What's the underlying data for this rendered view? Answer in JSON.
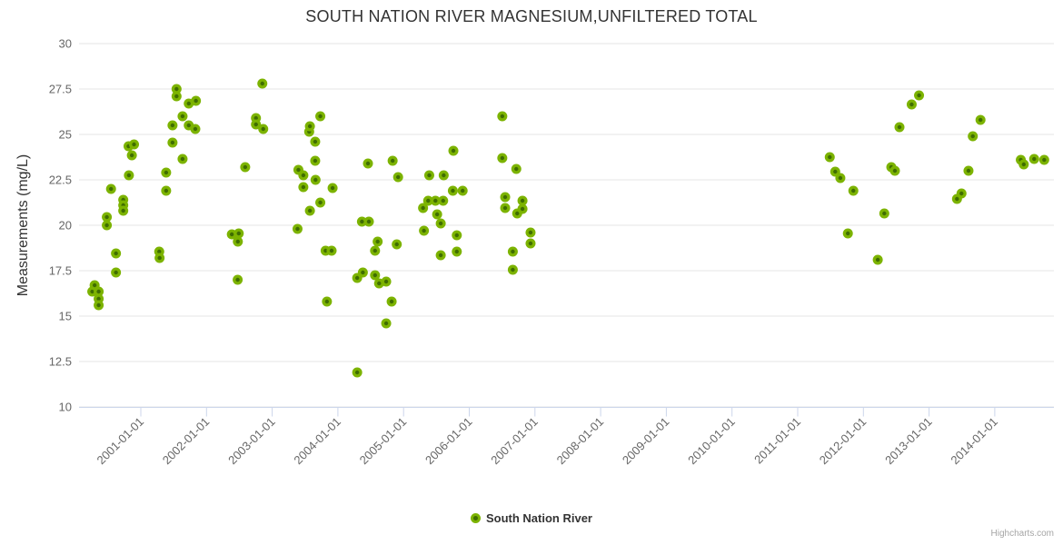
{
  "title": "SOUTH NATION RIVER MAGNESIUM,UNFILTERED TOTAL",
  "watermark": "Highcharts.com",
  "legend": {
    "series_label": "South Nation River"
  },
  "colors": {
    "marker_fill": "#7cb301",
    "marker_center": "#3f6d01",
    "grid_line": "#e6e6e6",
    "axis_line": "#ccd6eb",
    "axis_label": "#666666",
    "text": "#333333"
  },
  "chart_data": {
    "type": "scatter",
    "title": "SOUTH NATION RIVER MAGNESIUM,UNFILTERED TOTAL",
    "xlabel": "",
    "ylabel": "Measurements (mg/L)",
    "ylim": [
      10,
      30
    ],
    "yticks": [
      10,
      12.5,
      15,
      17.5,
      20,
      22.5,
      25,
      27.5,
      30
    ],
    "xticks": [
      "2001-01-01",
      "2002-01-01",
      "2003-01-01",
      "2004-01-01",
      "2005-01-01",
      "2006-01-01",
      "2007-01-01",
      "2008-01-01",
      "2009-01-01",
      "2010-01-01",
      "2011-01-01",
      "2012-01-01",
      "2013-01-01",
      "2014-01-01"
    ],
    "grid": true,
    "legend_position": "bottom",
    "series": [
      {
        "name": "South Nation River",
        "points": [
          [
            "2000-04-05",
            16.35
          ],
          [
            "2000-04-18",
            16.7
          ],
          [
            "2000-05-10",
            16.35
          ],
          [
            "2000-05-10",
            15.95
          ],
          [
            "2000-05-10",
            15.6
          ],
          [
            "2000-06-25",
            20.45
          ],
          [
            "2000-06-25",
            20.0
          ],
          [
            "2000-07-18",
            22.0
          ],
          [
            "2000-08-15",
            18.45
          ],
          [
            "2000-08-15",
            17.4
          ],
          [
            "2000-09-25",
            21.4
          ],
          [
            "2000-09-25",
            21.1
          ],
          [
            "2000-09-25",
            20.8
          ],
          [
            "2000-10-24",
            24.35
          ],
          [
            "2000-10-26",
            22.75
          ],
          [
            "2000-11-12",
            23.85
          ],
          [
            "2000-11-24",
            24.45
          ],
          [
            "2001-04-12",
            18.55
          ],
          [
            "2001-04-14",
            18.2
          ],
          [
            "2001-05-20",
            22.9
          ],
          [
            "2001-05-20",
            21.9
          ],
          [
            "2001-06-25",
            25.5
          ],
          [
            "2001-06-25",
            24.55
          ],
          [
            "2001-07-17",
            27.5
          ],
          [
            "2001-07-17",
            27.1
          ],
          [
            "2001-08-20",
            26.0
          ],
          [
            "2001-08-20",
            23.65
          ],
          [
            "2001-09-24",
            26.7
          ],
          [
            "2001-09-24",
            25.5
          ],
          [
            "2001-10-30",
            25.3
          ],
          [
            "2001-11-03",
            26.85
          ],
          [
            "2002-05-20",
            19.5
          ],
          [
            "2002-06-22",
            17.0
          ],
          [
            "2002-06-23",
            19.1
          ],
          [
            "2002-06-28",
            19.55
          ],
          [
            "2002-08-03",
            23.2
          ],
          [
            "2002-10-02",
            25.9
          ],
          [
            "2002-10-02",
            25.55
          ],
          [
            "2002-11-07",
            27.8
          ],
          [
            "2002-11-12",
            25.3
          ],
          [
            "2003-05-20",
            19.8
          ],
          [
            "2003-05-25",
            23.05
          ],
          [
            "2003-06-22",
            22.75
          ],
          [
            "2003-06-22",
            22.1
          ],
          [
            "2003-07-24",
            25.15
          ],
          [
            "2003-07-28",
            25.45
          ],
          [
            "2003-07-28",
            20.8
          ],
          [
            "2003-08-27",
            24.6
          ],
          [
            "2003-08-27",
            23.55
          ],
          [
            "2003-08-29",
            22.5
          ],
          [
            "2003-09-25",
            26.0
          ],
          [
            "2003-09-25",
            21.25
          ],
          [
            "2003-10-24",
            18.6
          ],
          [
            "2003-11-01",
            15.8
          ],
          [
            "2003-11-27",
            18.6
          ],
          [
            "2003-12-02",
            22.05
          ],
          [
            "2004-04-17",
            17.1
          ],
          [
            "2004-04-17",
            11.9
          ],
          [
            "2004-05-13",
            20.2
          ],
          [
            "2004-05-18",
            17.4
          ],
          [
            "2004-06-16",
            23.4
          ],
          [
            "2004-06-21",
            20.2
          ],
          [
            "2004-07-25",
            18.6
          ],
          [
            "2004-07-25",
            17.25
          ],
          [
            "2004-08-09",
            19.1
          ],
          [
            "2004-08-17",
            16.8
          ],
          [
            "2004-09-26",
            16.9
          ],
          [
            "2004-09-26",
            14.6
          ],
          [
            "2004-10-26",
            15.8
          ],
          [
            "2004-11-01",
            23.55
          ],
          [
            "2004-11-24",
            18.95
          ],
          [
            "2004-12-01",
            22.65
          ],
          [
            "2005-04-18",
            20.95
          ],
          [
            "2005-04-23",
            19.7
          ],
          [
            "2005-05-16",
            21.35
          ],
          [
            "2005-05-22",
            22.75
          ],
          [
            "2005-06-26",
            21.35
          ],
          [
            "2005-07-05",
            20.6
          ],
          [
            "2005-07-25",
            20.1
          ],
          [
            "2005-07-25",
            18.35
          ],
          [
            "2005-08-08",
            21.35
          ],
          [
            "2005-08-11",
            22.75
          ],
          [
            "2005-10-01",
            21.9
          ],
          [
            "2005-10-04",
            24.1
          ],
          [
            "2005-10-23",
            19.45
          ],
          [
            "2005-10-23",
            18.55
          ],
          [
            "2005-11-25",
            21.9
          ],
          [
            "2006-07-02",
            26.0
          ],
          [
            "2006-07-02",
            23.7
          ],
          [
            "2006-07-18",
            21.55
          ],
          [
            "2006-07-18",
            20.95
          ],
          [
            "2006-08-30",
            18.55
          ],
          [
            "2006-08-30",
            17.55
          ],
          [
            "2006-09-19",
            23.1
          ],
          [
            "2006-09-24",
            20.65
          ],
          [
            "2006-10-23",
            21.35
          ],
          [
            "2006-10-23",
            20.9
          ],
          [
            "2006-12-07",
            19.6
          ],
          [
            "2006-12-07",
            19.0
          ],
          [
            "2011-06-27",
            23.75
          ],
          [
            "2011-07-27",
            22.95
          ],
          [
            "2011-08-25",
            22.6
          ],
          [
            "2011-10-06",
            19.55
          ],
          [
            "2011-11-06",
            21.9
          ],
          [
            "2012-03-20",
            18.1
          ],
          [
            "2012-04-26",
            20.65
          ],
          [
            "2012-06-04",
            23.2
          ],
          [
            "2012-06-24",
            23.0
          ],
          [
            "2012-07-19",
            25.4
          ],
          [
            "2012-09-26",
            26.65
          ],
          [
            "2012-11-06",
            27.15
          ],
          [
            "2013-06-04",
            21.45
          ],
          [
            "2013-06-29",
            21.75
          ],
          [
            "2013-08-07",
            23.0
          ],
          [
            "2013-08-31",
            24.9
          ],
          [
            "2013-10-13",
            25.8
          ],
          [
            "2014-05-24",
            23.6
          ],
          [
            "2014-06-10",
            23.35
          ],
          [
            "2014-08-07",
            23.65
          ],
          [
            "2014-10-02",
            23.6
          ]
        ]
      }
    ]
  }
}
